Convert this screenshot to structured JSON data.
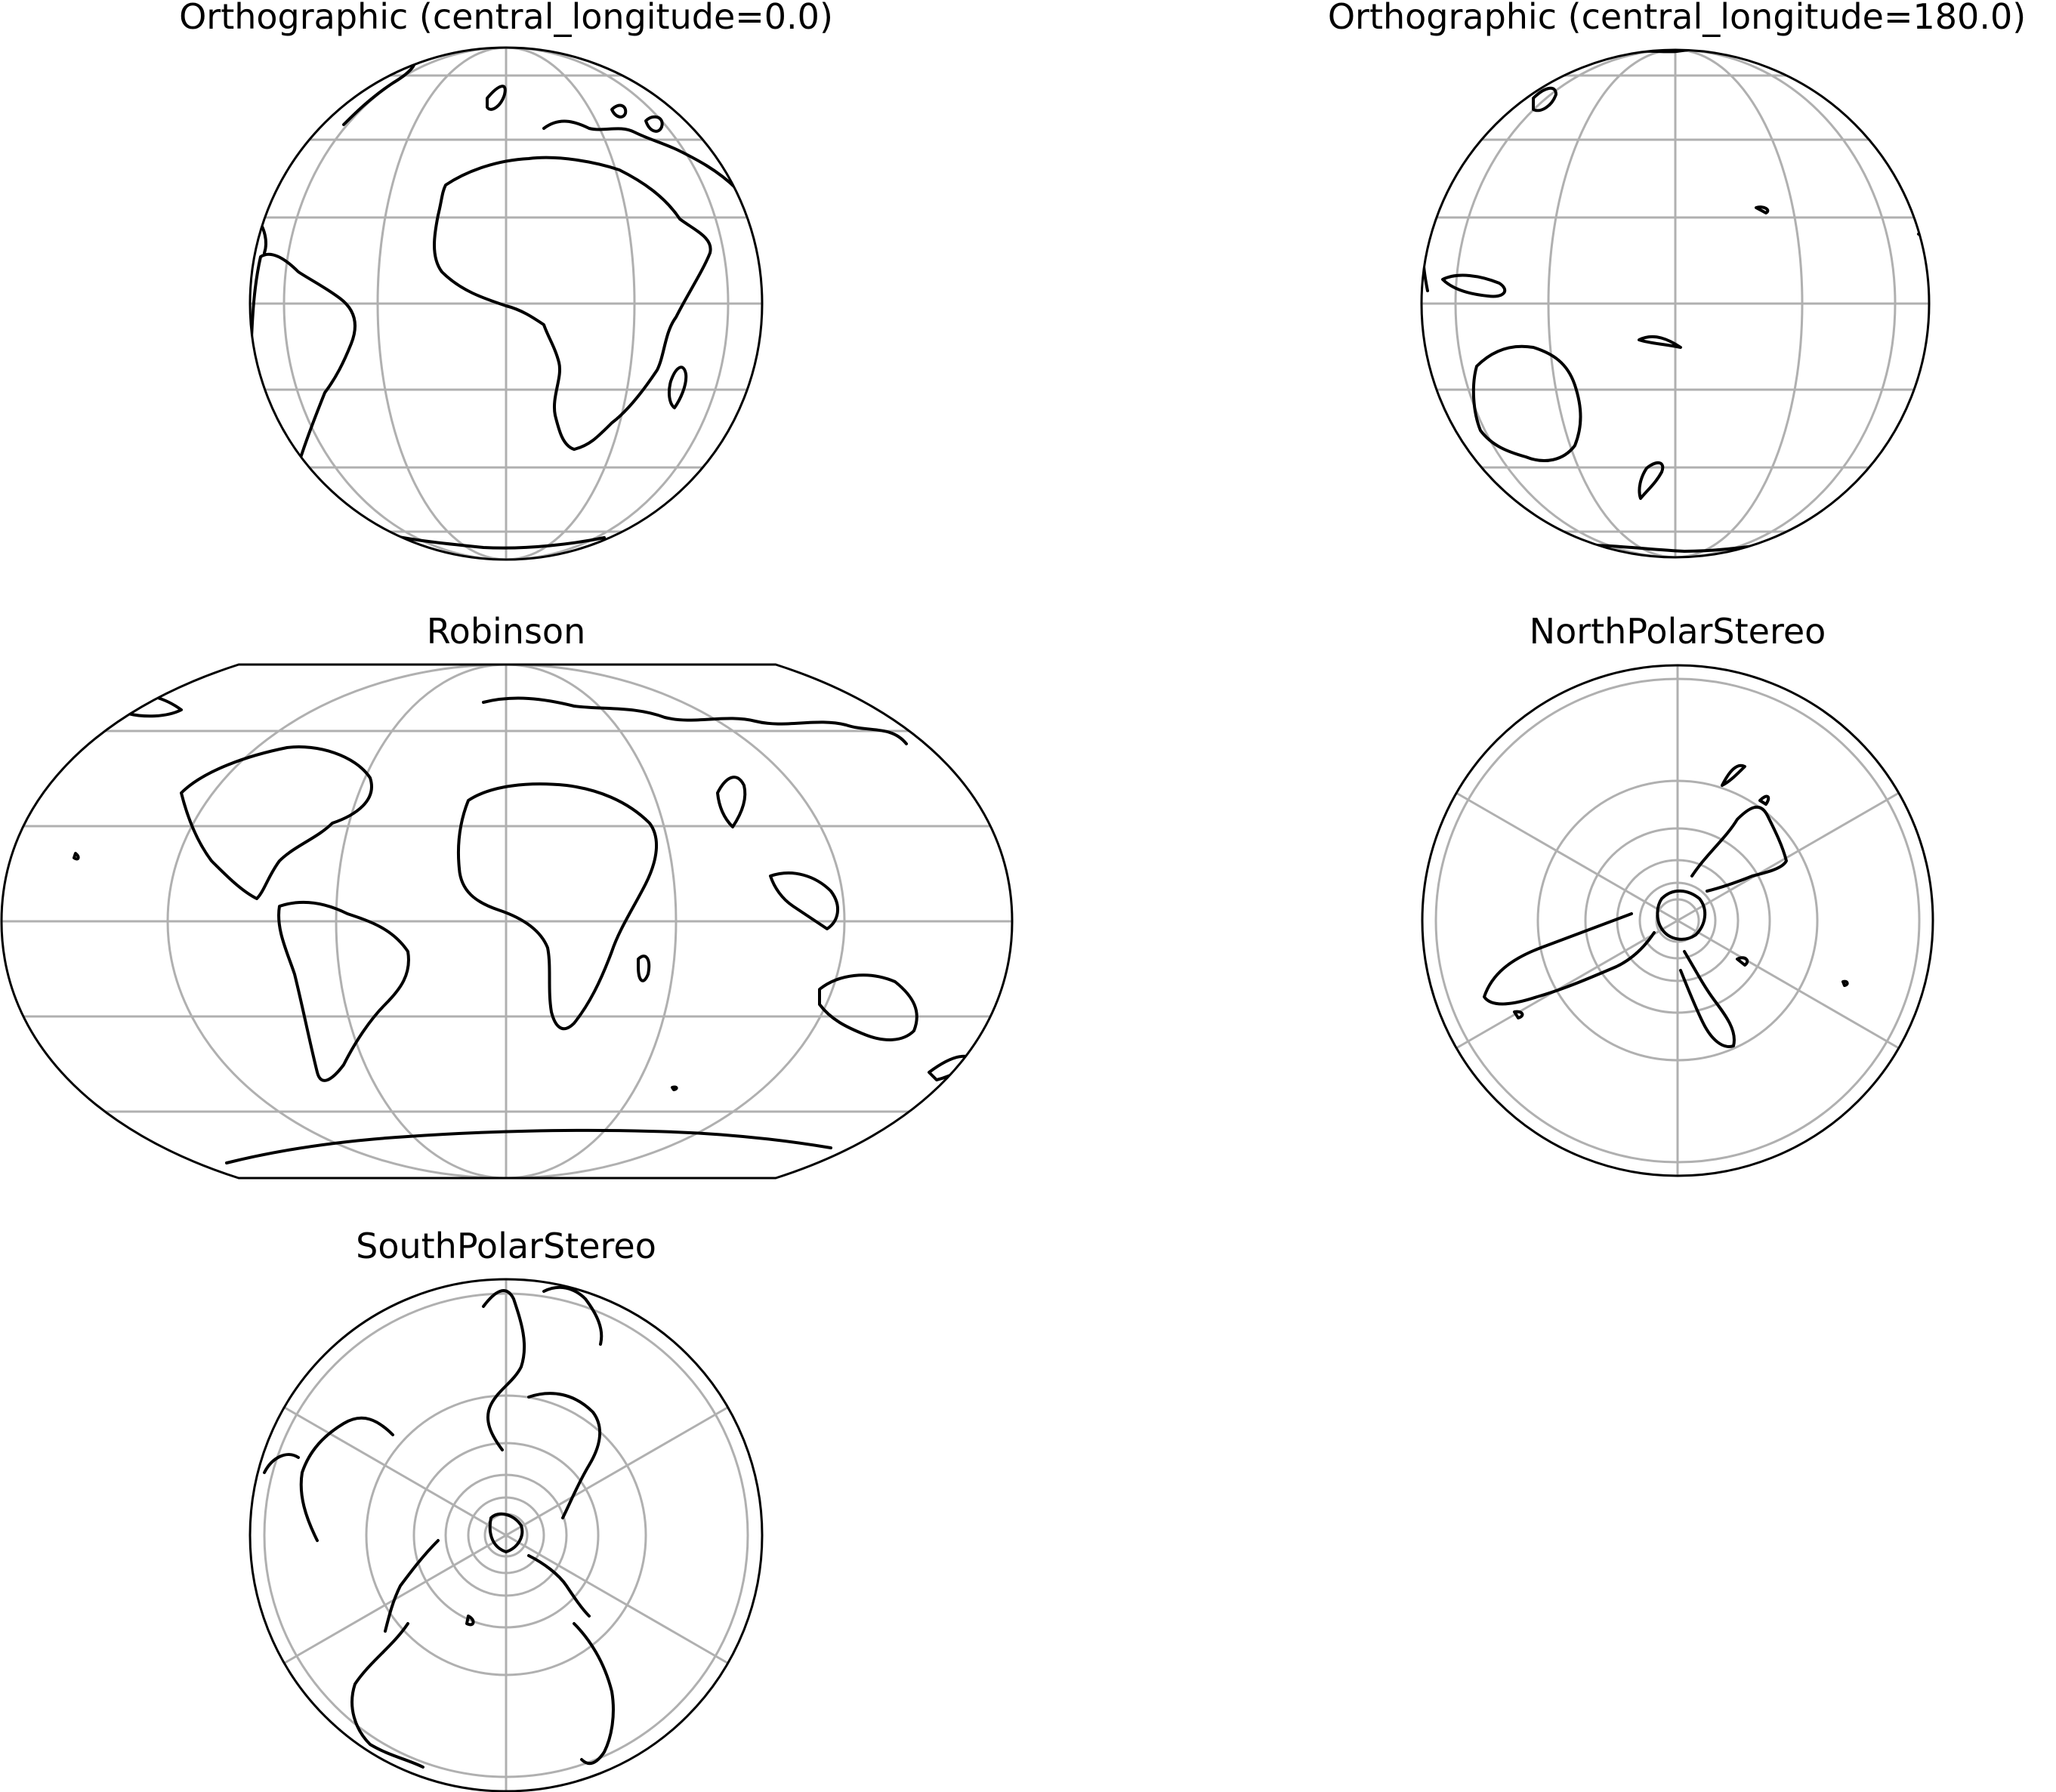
{
  "figure": {
    "panels": [
      {
        "id": "ortho-0",
        "title": "Orthographic (central_longitude=0.0)",
        "projection": "orthographic",
        "central_longitude": 0.0
      },
      {
        "id": "ortho-180",
        "title": "Orthographic (central_longitude=180.0)",
        "projection": "orthographic",
        "central_longitude": 180.0
      },
      {
        "id": "robinson",
        "title": "Robinson",
        "projection": "robinson"
      },
      {
        "id": "north-polar",
        "title": "NorthPolarStereo",
        "projection": "north_polar_stereo"
      },
      {
        "id": "south-polar",
        "title": "SouthPolarStereo",
        "projection": "south_polar_stereo"
      }
    ],
    "colors": {
      "gridlines": "#b0b0b0",
      "coastlines": "#000000",
      "frame": "#000000",
      "background": "#ffffff"
    }
  }
}
